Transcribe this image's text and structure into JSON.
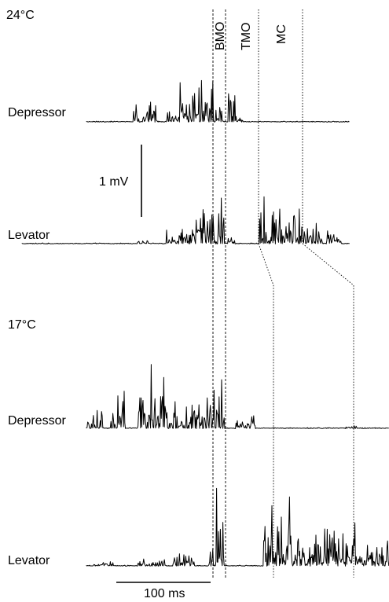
{
  "panel_top": {
    "temperature": "24°C",
    "depressor_label": "Depressor",
    "levator_label": "Levator"
  },
  "panel_bottom": {
    "temperature": "17°C",
    "depressor_label": "Depressor",
    "levator_label": "Levator"
  },
  "phases": {
    "bmo": "BMO",
    "tmo": "TMO",
    "mc": "MC"
  },
  "scale_bars": {
    "voltage": "1 mV",
    "time": "100 ms"
  }
}
